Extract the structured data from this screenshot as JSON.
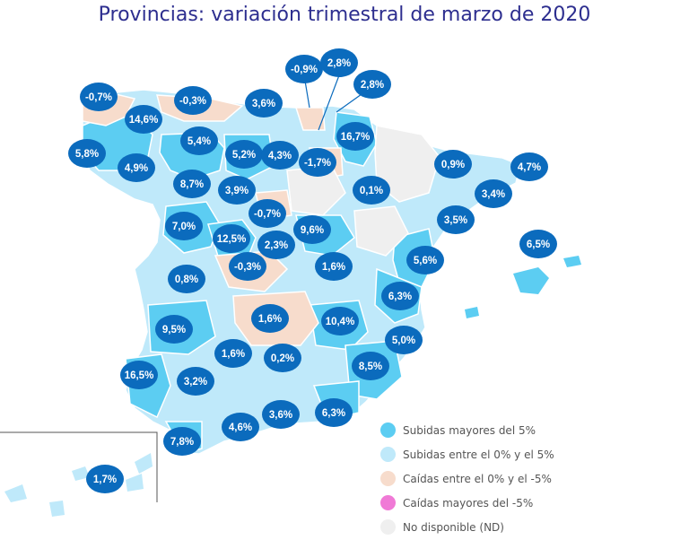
{
  "title": "Provincias: variación trimestral de marzo de 2020",
  "colors": {
    "bubble": "#0b6bbd",
    "strong_up": "#5ccdf2",
    "mild_up": "#bfe9fa",
    "mild_down": "#f7dccc",
    "strong_down": "#f07ad6",
    "no_data": "#efefef",
    "title": "#2d2e8f"
  },
  "legend": [
    {
      "label": "Subidas mayores del 5%",
      "color": "#5ccdf2"
    },
    {
      "label": "Subidas entre el 0% y el 5%",
      "color": "#bfe9fa"
    },
    {
      "label": "Caídas entre el 0% y el -5%",
      "color": "#f7dccc"
    },
    {
      "label": "Caídas mayores del -5%",
      "color": "#f07ad6"
    },
    {
      "label": "No disponible (ND)",
      "color": "#efefef"
    }
  ],
  "provinces": [
    {
      "value": "-0,7%"
    },
    {
      "value": "14,6%"
    },
    {
      "value": "-0,3%"
    },
    {
      "value": "3,6%"
    },
    {
      "value": "-0,9%"
    },
    {
      "value": "2,8%"
    },
    {
      "value": "2,8%"
    },
    {
      "value": "5,8%"
    },
    {
      "value": "4,9%"
    },
    {
      "value": "5,4%"
    },
    {
      "value": "5,2%"
    },
    {
      "value": "4,3%"
    },
    {
      "value": "-1,7%"
    },
    {
      "value": "16,7%"
    },
    {
      "value": "0,9%"
    },
    {
      "value": "4,7%"
    },
    {
      "value": "8,7%"
    },
    {
      "value": "3,9%"
    },
    {
      "value": "0,1%"
    },
    {
      "value": "3,4%"
    },
    {
      "value": "-0,7%"
    },
    {
      "value": "7,0%"
    },
    {
      "value": "12,5%"
    },
    {
      "value": "9,6%"
    },
    {
      "value": "3,5%"
    },
    {
      "value": "6,5%"
    },
    {
      "value": "2,3%"
    },
    {
      "value": "-0,3%"
    },
    {
      "value": "1,6%"
    },
    {
      "value": "5,6%"
    },
    {
      "value": "0,8%"
    },
    {
      "value": "6,3%"
    },
    {
      "value": "1,6%"
    },
    {
      "value": "10,4%"
    },
    {
      "value": "9,5%"
    },
    {
      "value": "5,0%"
    },
    {
      "value": "1,6%"
    },
    {
      "value": "0,2%"
    },
    {
      "value": "8,5%"
    },
    {
      "value": "16,5%"
    },
    {
      "value": "3,2%"
    },
    {
      "value": "3,6%"
    },
    {
      "value": "6,3%"
    },
    {
      "value": "4,6%"
    },
    {
      "value": "7,8%"
    },
    {
      "value": "1,7%"
    }
  ]
}
